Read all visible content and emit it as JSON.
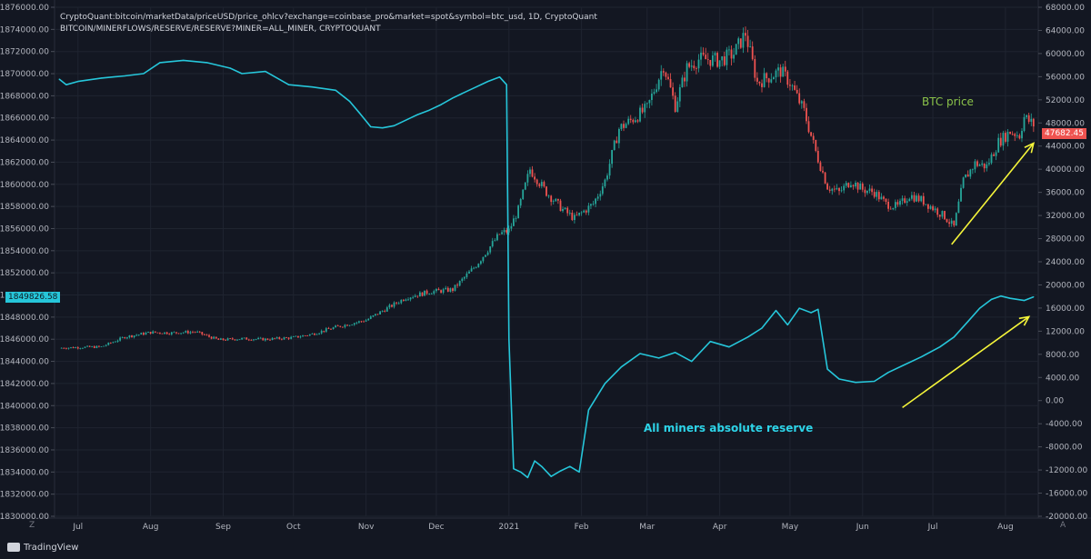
{
  "header": {
    "line1": "CryptoQuant:bitcoin/marketData/priceUSD/price_ohlcv?exchange=coinbase_pro&market=spot&symbol=btc_usd, 1D, CryptoQuant",
    "line2": "BITCOIN/MINERFLOWS/RESERVE/RESERVE?MINER=ALL_MINER, CRYPTOQUANT"
  },
  "badges": {
    "left_value": "1849826.58",
    "right_value": "47682.45"
  },
  "annotations": {
    "btc": "BTC price",
    "reserve": "All miners absolute reserve"
  },
  "footer": {
    "brand": "TradingView",
    "left_corner": "Z",
    "right_corner": "A"
  },
  "colors": {
    "background": "#131722",
    "grid": "#1f2430",
    "reserve_line": "#26c6da",
    "candle_up": "#26a69a",
    "candle_down": "#ef5350",
    "arrows": "#f5f53a",
    "btc_label": "#8bc34a"
  },
  "chart_data": {
    "type": "line",
    "x_ticks": [
      "Jul",
      "Aug",
      "Sep",
      "Oct",
      "Nov",
      "Dec",
      "2021",
      "Feb",
      "Mar",
      "Apr",
      "May",
      "Jun",
      "Jul",
      "Aug"
    ],
    "x_tick_days": [
      0,
      31,
      62,
      92,
      123,
      153,
      184,
      215,
      243,
      274,
      304,
      335,
      365,
      396
    ],
    "x_range_days": [
      -10,
      410
    ],
    "left_axis": {
      "range": [
        1830000,
        1876000
      ],
      "ticks": [
        "1876000.00",
        "1874000.00",
        "1872000.00",
        "1870000.00",
        "1868000.00",
        "1866000.00",
        "1864000.00",
        "1862000.00",
        "1860000.00",
        "1858000.00",
        "1856000.00",
        "1854000.00",
        "1852000.00",
        "1850000.00",
        "1848000.00",
        "1846000.00",
        "1844000.00",
        "1842000.00",
        "1840000.00",
        "1838000.00",
        "1836000.00",
        "1834000.00",
        "1832000.00",
        "1830000.00"
      ]
    },
    "right_axis": {
      "range": [
        -20000,
        68000
      ],
      "ticks": [
        "68000.00",
        "64000.00",
        "60000.00",
        "56000.00",
        "52000.00",
        "48000.00",
        "44000.00",
        "40000.00",
        "36000.00",
        "32000.00",
        "28000.00",
        "24000.00",
        "20000.00",
        "16000.00",
        "12000.00",
        "8000.00",
        "4000.00",
        "0.00",
        "-4000.00",
        "-8000.00",
        "-12000.00",
        "-16000.00",
        "-20000.00"
      ]
    },
    "series": [
      {
        "axis": "left",
        "kind": "line",
        "points": [
          [
            -8,
            1869500
          ],
          [
            -5,
            1869000
          ],
          [
            0,
            1869300
          ],
          [
            10,
            1869600
          ],
          [
            20,
            1869800
          ],
          [
            28,
            1870000
          ],
          [
            35,
            1871000
          ],
          [
            45,
            1871200
          ],
          [
            55,
            1871000
          ],
          [
            65,
            1870500
          ],
          [
            70,
            1870000
          ],
          [
            80,
            1870200
          ],
          [
            90,
            1869000
          ],
          [
            100,
            1868800
          ],
          [
            110,
            1868500
          ],
          [
            116,
            1867500
          ],
          [
            120,
            1866500
          ],
          [
            125,
            1865200
          ],
          [
            130,
            1865100
          ],
          [
            135,
            1865300
          ],
          [
            140,
            1865800
          ],
          [
            145,
            1866300
          ],
          [
            150,
            1866700
          ],
          [
            155,
            1867200
          ],
          [
            160,
            1867800
          ],
          [
            165,
            1868300
          ],
          [
            170,
            1868800
          ],
          [
            175,
            1869300
          ],
          [
            180,
            1869700
          ],
          [
            183,
            1869000
          ],
          [
            184,
            1846000
          ],
          [
            186,
            1834300
          ],
          [
            189,
            1834000
          ],
          [
            192,
            1833500
          ],
          [
            195,
            1835000
          ],
          [
            198,
            1834500
          ],
          [
            202,
            1833600
          ],
          [
            206,
            1834100
          ],
          [
            210,
            1834500
          ],
          [
            214,
            1834000
          ],
          [
            218,
            1839600
          ],
          [
            225,
            1842000
          ],
          [
            232,
            1843500
          ],
          [
            240,
            1844700
          ],
          [
            248,
            1844300
          ],
          [
            255,
            1844800
          ],
          [
            262,
            1844000
          ],
          [
            270,
            1845800
          ],
          [
            278,
            1845300
          ],
          [
            286,
            1846200
          ],
          [
            292,
            1847000
          ],
          [
            298,
            1848600
          ],
          [
            303,
            1847300
          ],
          [
            308,
            1848800
          ],
          [
            313,
            1848400
          ],
          [
            316,
            1848700
          ],
          [
            320,
            1843300
          ],
          [
            325,
            1842400
          ],
          [
            332,
            1842100
          ],
          [
            340,
            1842200
          ],
          [
            346,
            1843000
          ],
          [
            352,
            1843600
          ],
          [
            360,
            1844400
          ],
          [
            368,
            1845300
          ],
          [
            374,
            1846200
          ],
          [
            380,
            1847600
          ],
          [
            385,
            1848800
          ],
          [
            390,
            1849600
          ],
          [
            394,
            1849900
          ],
          [
            398,
            1849700
          ],
          [
            404,
            1849500
          ],
          [
            408,
            1849826
          ]
        ]
      },
      {
        "axis": "right",
        "kind": "candlestick",
        "close_points": [
          [
            -8,
            9100
          ],
          [
            0,
            9200
          ],
          [
            10,
            9300
          ],
          [
            20,
            11000
          ],
          [
            31,
            11800
          ],
          [
            40,
            11700
          ],
          [
            50,
            11900
          ],
          [
            60,
            10500
          ],
          [
            70,
            10700
          ],
          [
            80,
            10600
          ],
          [
            92,
            10900
          ],
          [
            100,
            11500
          ],
          [
            110,
            12700
          ],
          [
            123,
            13900
          ],
          [
            130,
            15500
          ],
          [
            140,
            17800
          ],
          [
            150,
            18800
          ],
          [
            160,
            19200
          ],
          [
            170,
            23400
          ],
          [
            180,
            28800
          ],
          [
            184,
            29400
          ],
          [
            188,
            33000
          ],
          [
            193,
            40000
          ],
          [
            200,
            36000
          ],
          [
            207,
            33000
          ],
          [
            212,
            31500
          ],
          [
            220,
            34000
          ],
          [
            225,
            38000
          ],
          [
            231,
            47000
          ],
          [
            238,
            49000
          ],
          [
            243,
            50500
          ],
          [
            250,
            58000
          ],
          [
            255,
            51000
          ],
          [
            260,
            57500
          ],
          [
            265,
            59000
          ],
          [
            270,
            59000
          ],
          [
            274,
            58800
          ],
          [
            280,
            60000
          ],
          [
            285,
            63500
          ],
          [
            290,
            55000
          ],
          [
            295,
            56000
          ],
          [
            300,
            57000
          ],
          [
            304,
            55000
          ],
          [
            310,
            50000
          ],
          [
            315,
            43000
          ],
          [
            320,
            37000
          ],
          [
            325,
            36000
          ],
          [
            330,
            38000
          ],
          [
            335,
            36500
          ],
          [
            340,
            36000
          ],
          [
            345,
            34000
          ],
          [
            350,
            33500
          ],
          [
            355,
            35500
          ],
          [
            360,
            34700
          ],
          [
            365,
            33300
          ],
          [
            370,
            31800
          ],
          [
            374,
            30000
          ],
          [
            378,
            38000
          ],
          [
            383,
            41000
          ],
          [
            388,
            40500
          ],
          [
            393,
            44700
          ],
          [
            398,
            46500
          ],
          [
            402,
            45900
          ],
          [
            404,
            49000
          ],
          [
            408,
            47682
          ]
        ]
      }
    ],
    "arrows": [
      {
        "from_day": 373,
        "from_value": 27000,
        "to_day": 408,
        "to_value": 44500
      },
      {
        "from_day": 352,
        "from_value": -1200,
        "to_day": 406,
        "to_value": 14500
      }
    ]
  }
}
